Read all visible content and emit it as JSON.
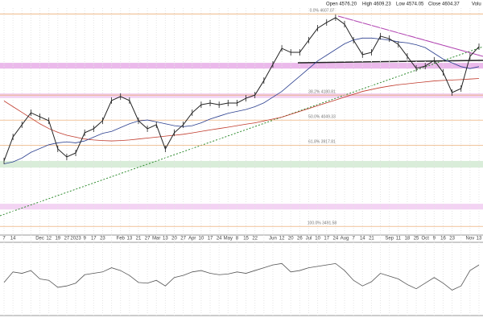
{
  "chart_data": {
    "type": "line",
    "header": {
      "open": "Open 4576.20",
      "high": "High 4609.23",
      "low": "Low 4574.05",
      "close": "Close 4604.37",
      "volume": "Volu"
    },
    "categories": [
      "7",
      "14",
      null,
      null,
      "Dec",
      "12",
      "19",
      "27",
      "2023",
      "9",
      "17",
      "23",
      null,
      "Feb",
      "13",
      "21",
      "27",
      "Mar",
      "13",
      "20",
      "27",
      "Apr",
      "10",
      "17",
      "24",
      "May",
      "8",
      "15",
      "22",
      null,
      "Jun",
      "12",
      "20",
      "26",
      "Jul",
      "10",
      "17",
      "24",
      "Aug",
      "7",
      "14",
      "21",
      null,
      "Sep",
      "11",
      "18",
      "25",
      "Oct",
      "9",
      "16",
      "23",
      null,
      "Nov",
      "13"
    ],
    "ylim": [
      3450,
      4680
    ],
    "series": [
      {
        "color": "#222222",
        "values": [
          3835,
          3961,
          4025,
          4088,
          4067,
          4046,
          3898,
          3856,
          3877,
          3983,
          4004,
          4046,
          4152,
          4173,
          4152,
          4046,
          4004,
          4025,
          3898,
          3983,
          4025,
          4088,
          4130,
          4139,
          4130,
          4139,
          4139,
          4164,
          4181,
          4257,
          4342,
          4426,
          4405,
          4405,
          4469,
          4532,
          4562,
          4587,
          4553,
          4469,
          4393,
          4405,
          4490,
          4477,
          4447,
          4384,
          4321,
          4333,
          4363,
          4300,
          4194,
          4215,
          4384,
          4435
        ]
      },
      {
        "color": "#2b3f8f",
        "values": [
          3820,
          3830,
          3850,
          3880,
          3900,
          3920,
          3930,
          3935,
          3930,
          3940,
          3960,
          3980,
          3990,
          4010,
          4030,
          4045,
          4050,
          4040,
          4030,
          4020,
          4015,
          4020,
          4035,
          4055,
          4070,
          4085,
          4095,
          4105,
          4120,
          4140,
          4170,
          4200,
          4240,
          4280,
          4320,
          4360,
          4390,
          4420,
          4450,
          4470,
          4480,
          4480,
          4475,
          4470,
          4460,
          4455,
          4445,
          4430,
          4400,
          4370,
          4350,
          4330,
          4320,
          4330
        ]
      },
      {
        "color": "#c0392b",
        "values": [
          4150,
          4120,
          4090,
          4060,
          4030,
          4005,
          3985,
          3970,
          3960,
          3950,
          3945,
          3942,
          3940,
          3942,
          3945,
          3950,
          3955,
          3960,
          3965,
          3970,
          3975,
          3982,
          3990,
          3998,
          4005,
          4012,
          4020,
          4028,
          4035,
          4045,
          4055,
          4065,
          4080,
          4095,
          4110,
          4125,
          4140,
          4155,
          4170,
          4185,
          4200,
          4210,
          4220,
          4228,
          4235,
          4240,
          4245,
          4250,
          4255,
          4258,
          4260,
          4262,
          4265,
          4268
        ]
      }
    ],
    "fib_levels": [
      {
        "value": 4607.07,
        "label": "0.0% 4607.07"
      },
      {
        "value": 4180.81,
        "label": "38.2% 4180.81"
      },
      {
        "value": 4049.33,
        "label": "50.0% 4049.33"
      },
      {
        "value": 3917.81,
        "label": "61.8% 3917.81"
      },
      {
        "value": 3491.58,
        "label": "100.0% 3491.58"
      }
    ],
    "zones": [
      {
        "low": 4320,
        "high": 4350,
        "color": "#e6a8e6"
      },
      {
        "low": 4165,
        "high": 4190,
        "color": "#f0c8f0"
      },
      {
        "low": 3800,
        "high": 3835,
        "color": "#cfe8cf"
      },
      {
        "low": 3580,
        "high": 3610,
        "color": "#f0c8f0"
      }
    ],
    "rsi": {
      "color": "#555555",
      "ylim": [
        0,
        100
      ],
      "values": [
        45,
        60,
        58,
        62,
        50,
        48,
        38,
        40,
        44,
        56,
        58,
        60,
        66,
        62,
        55,
        45,
        44,
        48,
        40,
        52,
        55,
        60,
        62,
        58,
        56,
        57,
        60,
        58,
        62,
        66,
        70,
        72,
        60,
        62,
        66,
        68,
        70,
        72,
        62,
        48,
        40,
        46,
        58,
        54,
        50,
        42,
        36,
        44,
        52,
        44,
        34,
        40,
        62,
        70
      ]
    }
  }
}
